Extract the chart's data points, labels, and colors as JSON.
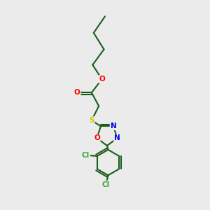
{
  "background_color": "#ebebeb",
  "atom_colors": {
    "C": "#1a5c1a",
    "O": "#ff0000",
    "N": "#0000ee",
    "S": "#cccc00",
    "Cl": "#33aa33"
  },
  "bond_color": "#1a5c1a",
  "figsize": [
    3.0,
    3.0
  ],
  "dpi": 100
}
